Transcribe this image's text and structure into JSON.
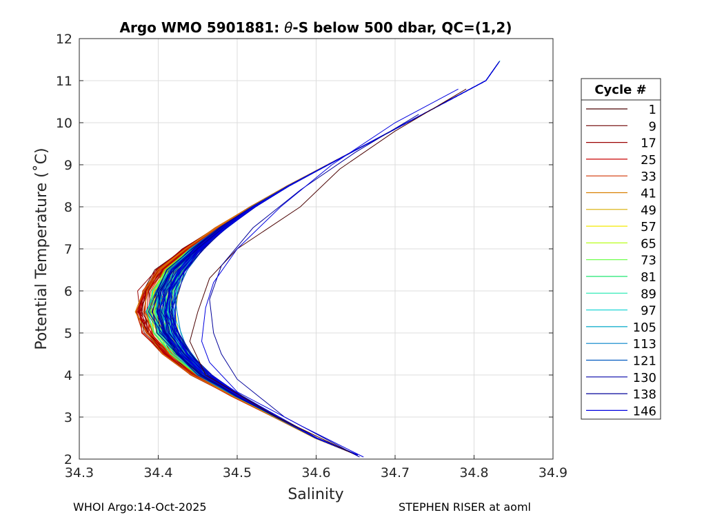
{
  "chart_data": {
    "type": "line",
    "title_parts": [
      "Argo WMO 5901881: ",
      "θ",
      "-S below 500 dbar,  QC=(1,2)"
    ],
    "xlabel": "Salinity",
    "ylabel": "Potential Temperature (˚C)",
    "xlim": [
      34.3,
      34.9
    ],
    "ylim": [
      2,
      12
    ],
    "xticks": [
      "34.3",
      "34.4",
      "34.5",
      "34.6",
      "34.7",
      "34.8",
      "34.9"
    ],
    "yticks": [
      "2",
      "3",
      "4",
      "5",
      "6",
      "7",
      "8",
      "9",
      "10",
      "11",
      "12"
    ],
    "grid": true,
    "legend": {
      "title": "Cycle #",
      "placement": "outside-right",
      "entries": [
        {
          "label": "1",
          "color": "#4a0000"
        },
        {
          "label": "9",
          "color": "#6e0000"
        },
        {
          "label": "17",
          "color": "#9a0000"
        },
        {
          "label": "25",
          "color": "#c80000"
        },
        {
          "label": "33",
          "color": "#d23200"
        },
        {
          "label": "41",
          "color": "#d87f00"
        },
        {
          "label": "49",
          "color": "#d8ad00"
        },
        {
          "label": "57",
          "color": "#f3e800"
        },
        {
          "label": "65",
          "color": "#b9ff1a"
        },
        {
          "label": "73",
          "color": "#5fff3a"
        },
        {
          "label": "81",
          "color": "#1fe870"
        },
        {
          "label": "89",
          "color": "#1fe8b0"
        },
        {
          "label": "97",
          "color": "#1fd6d6"
        },
        {
          "label": "105",
          "color": "#00a8c8"
        },
        {
          "label": "113",
          "color": "#0080c8"
        },
        {
          "label": "121",
          "color": "#0058c0"
        },
        {
          "label": "130",
          "color": "#0000a8"
        },
        {
          "label": "138",
          "color": "#00009a"
        },
        {
          "label": "146",
          "color": "#0000e0"
        }
      ]
    },
    "base_profile": [
      [
        34.652,
        2.1
      ],
      [
        34.6,
        2.5
      ],
      [
        34.55,
        3.0
      ],
      [
        34.5,
        3.5
      ],
      [
        34.455,
        4.0
      ],
      [
        34.425,
        4.5
      ],
      [
        34.405,
        5.0
      ],
      [
        34.398,
        5.5
      ],
      [
        34.402,
        6.0
      ],
      [
        34.418,
        6.5
      ],
      [
        34.445,
        7.0
      ],
      [
        34.48,
        7.5
      ],
      [
        34.52,
        8.0
      ],
      [
        34.565,
        8.5
      ],
      [
        34.615,
        9.0
      ],
      [
        34.665,
        9.5
      ],
      [
        34.715,
        10.0
      ],
      [
        34.765,
        10.5
      ],
      [
        34.815,
        11.0
      ]
    ],
    "outlier_profiles": [
      {
        "cycle": "1",
        "points": [
          [
            34.65,
            2.1
          ],
          [
            34.55,
            3.0
          ],
          [
            34.46,
            4.0
          ],
          [
            34.44,
            4.8
          ],
          [
            34.45,
            5.5
          ],
          [
            34.465,
            6.3
          ],
          [
            34.5,
            7.0
          ],
          [
            34.58,
            8.0
          ],
          [
            34.63,
            8.9
          ],
          [
            34.7,
            9.8
          ],
          [
            34.79,
            10.8
          ]
        ]
      },
      {
        "cycle": "138",
        "points": [
          [
            34.655,
            2.05
          ],
          [
            34.56,
            3.0
          ],
          [
            34.5,
            3.9
          ],
          [
            34.48,
            4.5
          ],
          [
            34.47,
            5.0
          ],
          [
            34.465,
            5.8
          ],
          [
            34.48,
            6.6
          ],
          [
            34.52,
            7.5
          ],
          [
            34.58,
            8.4
          ],
          [
            34.65,
            9.3
          ],
          [
            34.73,
            10.2
          ]
        ]
      },
      {
        "cycle": "146",
        "points": [
          [
            34.66,
            2.05
          ],
          [
            34.58,
            2.8
          ],
          [
            34.5,
            3.6
          ],
          [
            34.465,
            4.3
          ],
          [
            34.455,
            4.8
          ],
          [
            34.46,
            5.6
          ],
          [
            34.47,
            6.2
          ],
          [
            34.5,
            7.0
          ],
          [
            34.555,
            8.0
          ],
          [
            34.62,
            9.0
          ],
          [
            34.7,
            10.0
          ],
          [
            34.78,
            10.8
          ]
        ]
      }
    ]
  },
  "footer": {
    "left": "WHOI Argo:14-Oct-2025",
    "right": "STEPHEN RISER at aoml"
  }
}
